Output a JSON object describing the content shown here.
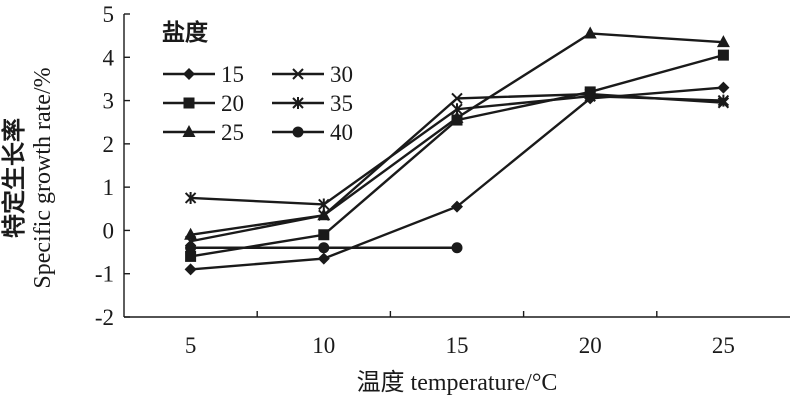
{
  "chart_data": {
    "type": "line",
    "x": [
      5,
      10,
      15,
      20,
      25
    ],
    "xlabel": "温度 temperature/°C",
    "ylabel_cn": "特定生长率",
    "ylabel_en": "Specific growth rate/%",
    "ylim": [
      -2,
      5
    ],
    "yticks": [
      -2,
      -1,
      0,
      1,
      2,
      3,
      4,
      5
    ],
    "grid": false,
    "legend": {
      "title": "盐度",
      "placement": "top-left",
      "columns": 2
    },
    "series": [
      {
        "name": "15",
        "marker": "diamond",
        "values": [
          -0.9,
          -0.65,
          0.55,
          3.05,
          3.3
        ]
      },
      {
        "name": "20",
        "marker": "square",
        "values": [
          -0.6,
          -0.1,
          2.55,
          3.2,
          4.05
        ]
      },
      {
        "name": "25",
        "marker": "triangle",
        "values": [
          -0.1,
          0.35,
          2.6,
          4.55,
          4.35
        ]
      },
      {
        "name": "30",
        "marker": "x",
        "values": [
          -0.25,
          0.35,
          3.05,
          3.15,
          2.95
        ]
      },
      {
        "name": "35",
        "marker": "asterisk",
        "values": [
          0.75,
          0.6,
          2.8,
          3.1,
          3.0
        ]
      },
      {
        "name": "40",
        "marker": "circle",
        "values": [
          -0.4,
          -0.4,
          -0.4,
          null,
          null
        ]
      }
    ]
  }
}
